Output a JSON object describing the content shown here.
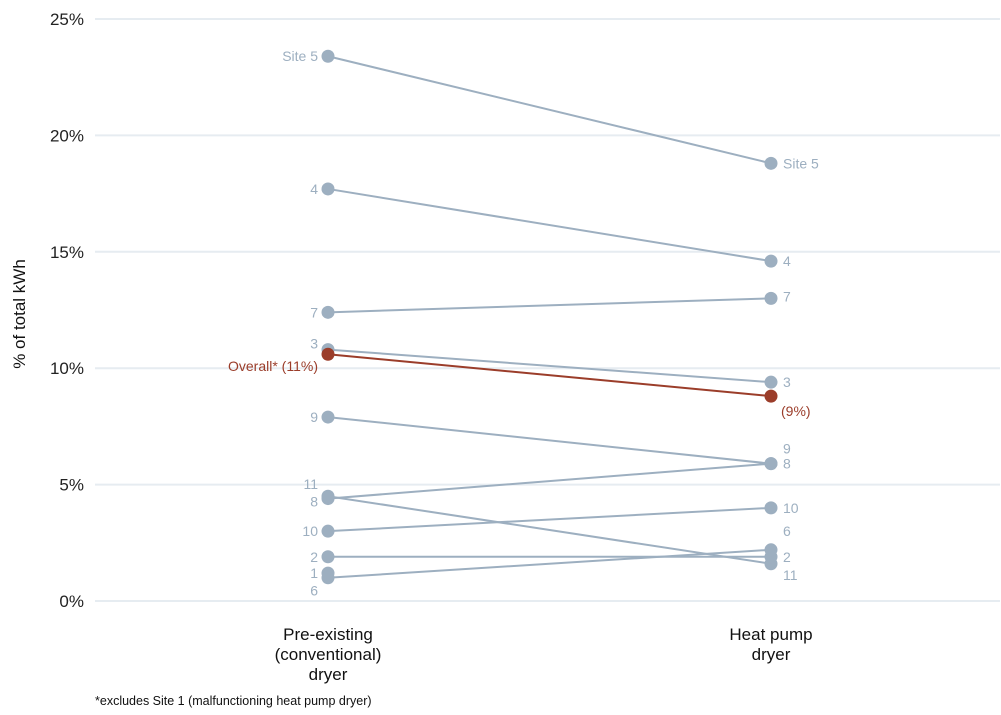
{
  "chart_data": {
    "type": "slope",
    "ylabel": "% of total kWh",
    "ylim": [
      0,
      25
    ],
    "yticks": [
      "0%",
      "5%",
      "10%",
      "15%",
      "20%",
      "25%"
    ],
    "categories": [
      [
        "Pre-existing",
        "(conventional)",
        "dryer"
      ],
      [
        "Heat pump",
        "dryer"
      ]
    ],
    "grid": true,
    "colors": {
      "site": "#9dafc0",
      "overall": "#9b3d2a",
      "grid": "#e6ecf1"
    },
    "series": [
      {
        "name": "Site 5",
        "left_label": "Site 5",
        "right_label": "Site 5",
        "values": [
          23.4,
          18.8
        ]
      },
      {
        "name": "4",
        "left_label": "4",
        "right_label": "4",
        "values": [
          17.7,
          14.6
        ]
      },
      {
        "name": "7",
        "left_label": "7",
        "right_label": "7",
        "values": [
          12.4,
          13.0
        ]
      },
      {
        "name": "3",
        "left_label": "3",
        "right_label": "3",
        "values": [
          10.8,
          9.4
        ]
      },
      {
        "name": "9",
        "left_label": "9",
        "right_label": "9",
        "values": [
          7.9,
          5.9
        ]
      },
      {
        "name": "8",
        "left_label": "8",
        "right_label": "8",
        "values": [
          4.4,
          5.9
        ]
      },
      {
        "name": "11",
        "left_label": "11",
        "right_label": "11",
        "values": [
          4.5,
          1.6
        ]
      },
      {
        "name": "10",
        "left_label": "10",
        "right_label": "10",
        "values": [
          3.0,
          4.0
        ]
      },
      {
        "name": "2",
        "left_label": "2",
        "right_label": "2",
        "values": [
          1.9,
          1.9
        ]
      },
      {
        "name": "6",
        "left_label": "6",
        "right_label": "6",
        "values": [
          1.0,
          2.2
        ]
      },
      {
        "name": "1",
        "left_label": "1",
        "right_label": "",
        "values": [
          1.2,
          null
        ]
      }
    ],
    "overall": {
      "name": "Overall*",
      "left_label": "Overall* (11%)",
      "right_label": "(9%)",
      "values": [
        10.6,
        8.8
      ]
    }
  },
  "footnote": "*excludes Site 1 (malfunctioning heat pump dryer)"
}
